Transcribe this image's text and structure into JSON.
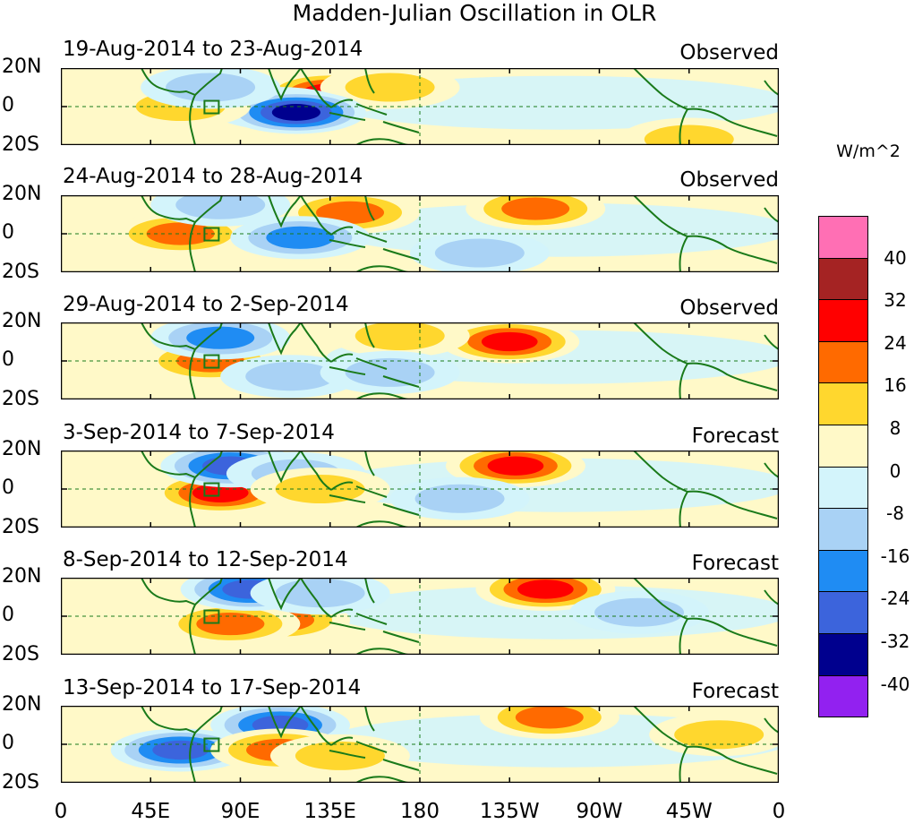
{
  "chart_data": {
    "type": "heatmap",
    "title": "Madden-Julian Oscillation in OLR",
    "units": "W/m^2",
    "x_ticks": [
      "0",
      "45E",
      "90E",
      "135E",
      "180",
      "135W",
      "90W",
      "45W",
      "0"
    ],
    "y_ticks": [
      "20N",
      "0",
      "20S"
    ],
    "colorbar_levels": [
      "40",
      "32",
      "24",
      "16",
      "8",
      "0",
      "-8",
      "-16",
      "-24",
      "-32",
      "-40"
    ],
    "colorbar_colors": [
      "#ff6fb4",
      "#a52323",
      "#ff0000",
      "#ff6a00",
      "#ffd72e",
      "#fff9c8",
      "#d3f4fb",
      "#a9d2f5",
      "#1f8cf3",
      "#3c64dc",
      "#00008e",
      "#9221f0"
    ],
    "panels": [
      {
        "date_range": "19-Aug-2014 to 23-Aug-2014",
        "kind": "Observed",
        "anomalies": [
          {
            "lon": 135,
            "lat": 7,
            "value": 30
          },
          {
            "lon": 165,
            "lat": 10,
            "value": 12
          },
          {
            "lon": 110,
            "lat": -1,
            "value": -22
          },
          {
            "lon": 118,
            "lat": -3,
            "value": -35
          },
          {
            "lon": 60,
            "lat": 0,
            "value": 12
          },
          {
            "lon": 75,
            "lat": 10,
            "value": -10
          },
          {
            "lon": 315,
            "lat": -17,
            "value": 12
          }
        ]
      },
      {
        "date_range": "24-Aug-2014 to 28-Aug-2014",
        "kind": "Observed",
        "anomalies": [
          {
            "lon": 145,
            "lat": 11,
            "value": 22
          },
          {
            "lon": 238,
            "lat": 13,
            "value": 16
          },
          {
            "lon": 60,
            "lat": 0,
            "value": 22
          },
          {
            "lon": 120,
            "lat": -2,
            "value": -22
          },
          {
            "lon": 80,
            "lat": 15,
            "value": -12
          },
          {
            "lon": 210,
            "lat": -10,
            "value": -8
          }
        ]
      },
      {
        "date_range": "29-Aug-2014 to 2-Sep-2014",
        "kind": "Observed",
        "anomalies": [
          {
            "lon": 225,
            "lat": 10,
            "value": 28
          },
          {
            "lon": 170,
            "lat": 13,
            "value": 10
          },
          {
            "lon": 75,
            "lat": 0,
            "value": 22
          },
          {
            "lon": 80,
            "lat": 12,
            "value": -22
          },
          {
            "lon": 115,
            "lat": -8,
            "value": -14
          },
          {
            "lon": 165,
            "lat": -6,
            "value": -10
          }
        ]
      },
      {
        "date_range": "3-Sep-2014 to 7-Sep-2014",
        "kind": "Forecast",
        "anomalies": [
          {
            "lon": 228,
            "lat": 12,
            "value": 30
          },
          {
            "lon": 80,
            "lat": -2,
            "value": 24
          },
          {
            "lon": 85,
            "lat": 12,
            "value": -24
          },
          {
            "lon": 118,
            "lat": 8,
            "value": -14
          },
          {
            "lon": 130,
            "lat": 0,
            "value": 12
          },
          {
            "lon": 200,
            "lat": -5,
            "value": -8
          }
        ]
      },
      {
        "date_range": "8-Sep-2014 to 12-Sep-2014",
        "kind": "Forecast",
        "anomalies": [
          {
            "lon": 243,
            "lat": 14,
            "value": 30
          },
          {
            "lon": 110,
            "lat": -2,
            "value": 16
          },
          {
            "lon": 85,
            "lat": -4,
            "value": 20
          },
          {
            "lon": 95,
            "lat": 14,
            "value": -26
          },
          {
            "lon": 130,
            "lat": 12,
            "value": -12
          },
          {
            "lon": 290,
            "lat": 2,
            "value": -8
          }
        ]
      },
      {
        "date_range": "13-Sep-2014 to 17-Sep-2014",
        "kind": "Forecast",
        "anomalies": [
          {
            "lon": 245,
            "lat": 14,
            "value": 22
          },
          {
            "lon": 330,
            "lat": 5,
            "value": 14
          },
          {
            "lon": 110,
            "lat": 10,
            "value": -26
          },
          {
            "lon": 60,
            "lat": -3,
            "value": -24
          },
          {
            "lon": 110,
            "lat": -3,
            "value": 16
          },
          {
            "lon": 140,
            "lat": -6,
            "value": 10
          }
        ]
      }
    ]
  }
}
